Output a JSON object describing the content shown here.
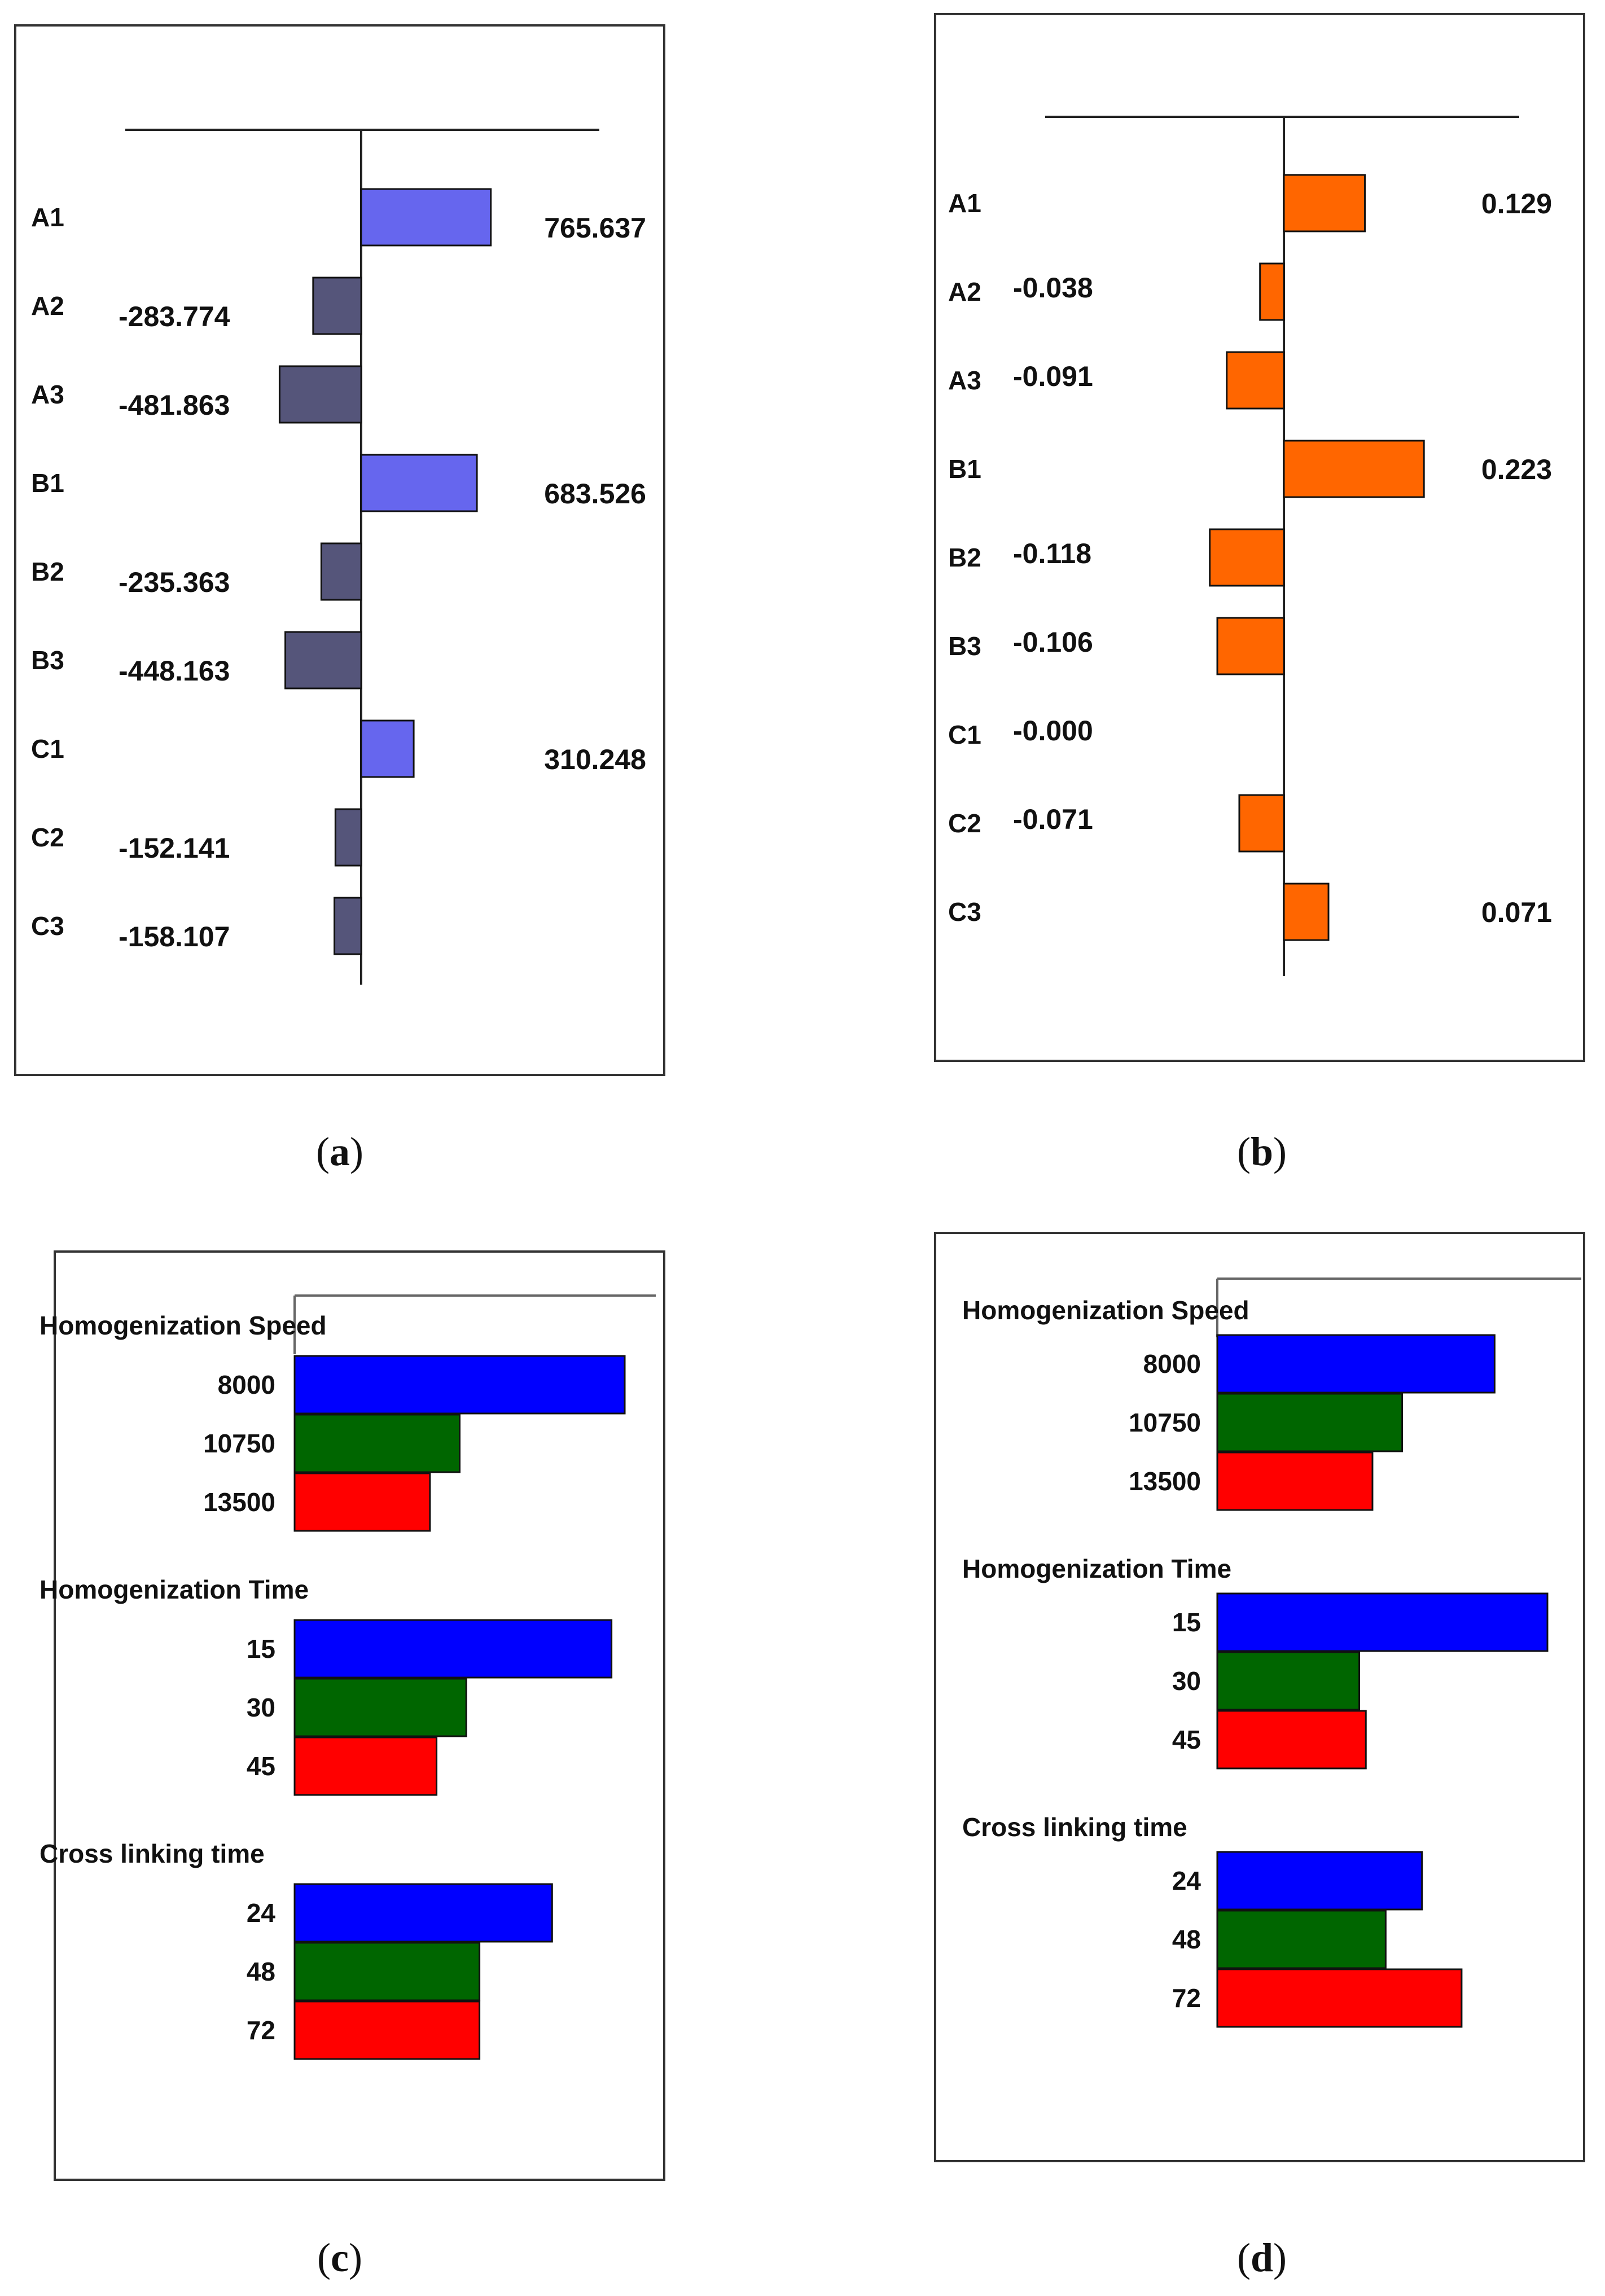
{
  "chart_data": [
    {
      "type": "bar",
      "orientation": "horizontal",
      "panel_label": "a",
      "title": "",
      "categories": [
        "A1",
        "A2",
        "A3",
        "B1",
        "B2",
        "B3",
        "C1",
        "C2",
        "C3"
      ],
      "values": [
        765.637,
        -283.774,
        -481.863,
        683.526,
        -235.363,
        -448.163,
        310.248,
        -152.141,
        -158.107
      ],
      "value_labels": [
        "765.637",
        "-283.774",
        "-481.863",
        "683.526",
        "-235.363",
        "-448.163",
        "310.248",
        "-152.141",
        "-158.107"
      ],
      "xlim": [
        -1100,
        1100
      ],
      "colors": {
        "positive": "#6666ee",
        "negative": "#55557a"
      }
    },
    {
      "type": "bar",
      "orientation": "horizontal",
      "panel_label": "b",
      "title": "",
      "categories": [
        "A1",
        "A2",
        "A3",
        "B1",
        "B2",
        "B3",
        "C1",
        "C2",
        "C3"
      ],
      "values": [
        0.129,
        -0.038,
        -0.091,
        0.223,
        -0.118,
        -0.106,
        0.0,
        -0.071,
        0.071
      ],
      "value_labels": [
        "0.129",
        "-0.038",
        "-0.091",
        "0.223",
        "-0.118",
        "-0.106",
        "-0.000",
        "-0.071",
        "0.071"
      ],
      "xlim": [
        -0.31,
        0.31
      ],
      "colors": {
        "bar": "#ff6600"
      }
    },
    {
      "type": "bar",
      "orientation": "horizontal",
      "panel_label": "c",
      "title": "",
      "groups": [
        {
          "name": "Homogenization Speed",
          "levels": [
            "8000",
            "10750",
            "13500"
          ],
          "values": [
            1.0,
            0.5,
            0.41
          ]
        },
        {
          "name": "Homogenization Time",
          "levels": [
            "15",
            "30",
            "45"
          ],
          "values": [
            0.96,
            0.52,
            0.43
          ]
        },
        {
          "name": "Cross linking time",
          "levels": [
            "24",
            "48",
            "72"
          ],
          "values": [
            0.78,
            0.56,
            0.56
          ]
        }
      ],
      "level_colors": [
        "#0000ff",
        "#006600",
        "#ff0000"
      ]
    },
    {
      "type": "bar",
      "orientation": "horizontal",
      "panel_label": "d",
      "title": "",
      "groups": [
        {
          "name": "Homogenization Speed",
          "levels": [
            "8000",
            "10750",
            "13500"
          ],
          "values": [
            0.84,
            0.56,
            0.47
          ]
        },
        {
          "name": "Homogenization Time",
          "levels": [
            "15",
            "30",
            "45"
          ],
          "values": [
            1.0,
            0.43,
            0.45
          ]
        },
        {
          "name": "Cross linking time",
          "levels": [
            "24",
            "48",
            "72"
          ],
          "values": [
            0.62,
            0.51,
            0.74
          ]
        }
      ],
      "level_colors": [
        "#0000ff",
        "#006600",
        "#ff0000"
      ]
    }
  ]
}
